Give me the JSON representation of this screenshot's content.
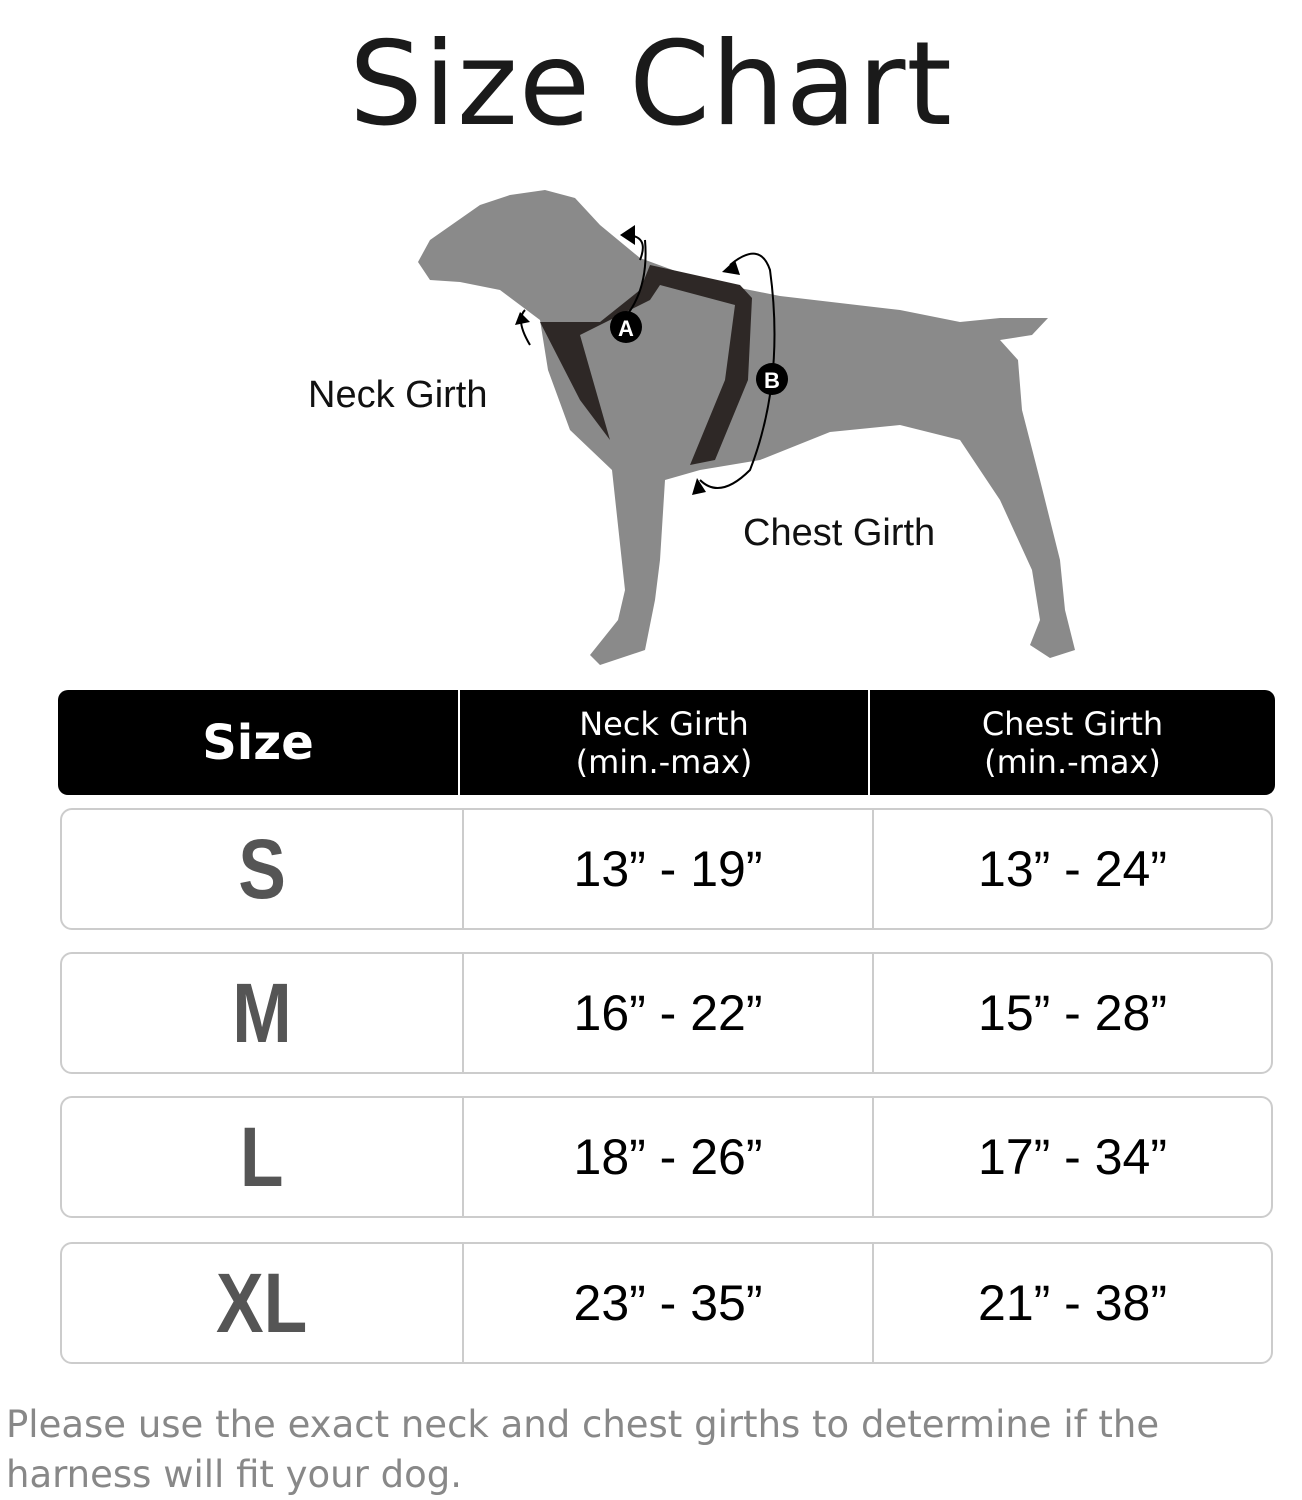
{
  "title": "Size Chart",
  "diagram": {
    "neck_label": "Neck Girth",
    "chest_label": "Chest Girth",
    "marker_a": "A",
    "marker_b": "B",
    "dog_color": "#8a8a8a",
    "harness_color": "#2e2826"
  },
  "table": {
    "headers": [
      {
        "line1": "Size",
        "line2": ""
      },
      {
        "line1": "Neck Girth",
        "line2": "(min.-max)"
      },
      {
        "line1": "Chest Girth",
        "line2": "(min.-max)"
      }
    ],
    "rows": [
      {
        "size": "S",
        "neck": "13” - 19”",
        "chest": "13” - 24”"
      },
      {
        "size": "M",
        "neck": "16” - 22”",
        "chest": "15” - 28”"
      },
      {
        "size": "L",
        "neck": "18” - 26”",
        "chest": "17” - 34”"
      },
      {
        "size": "XL",
        "neck": "23” - 35”",
        "chest": "21” - 38”"
      }
    ]
  },
  "note": "Please use the exact neck and chest girths to determine if the harness will fit your dog."
}
